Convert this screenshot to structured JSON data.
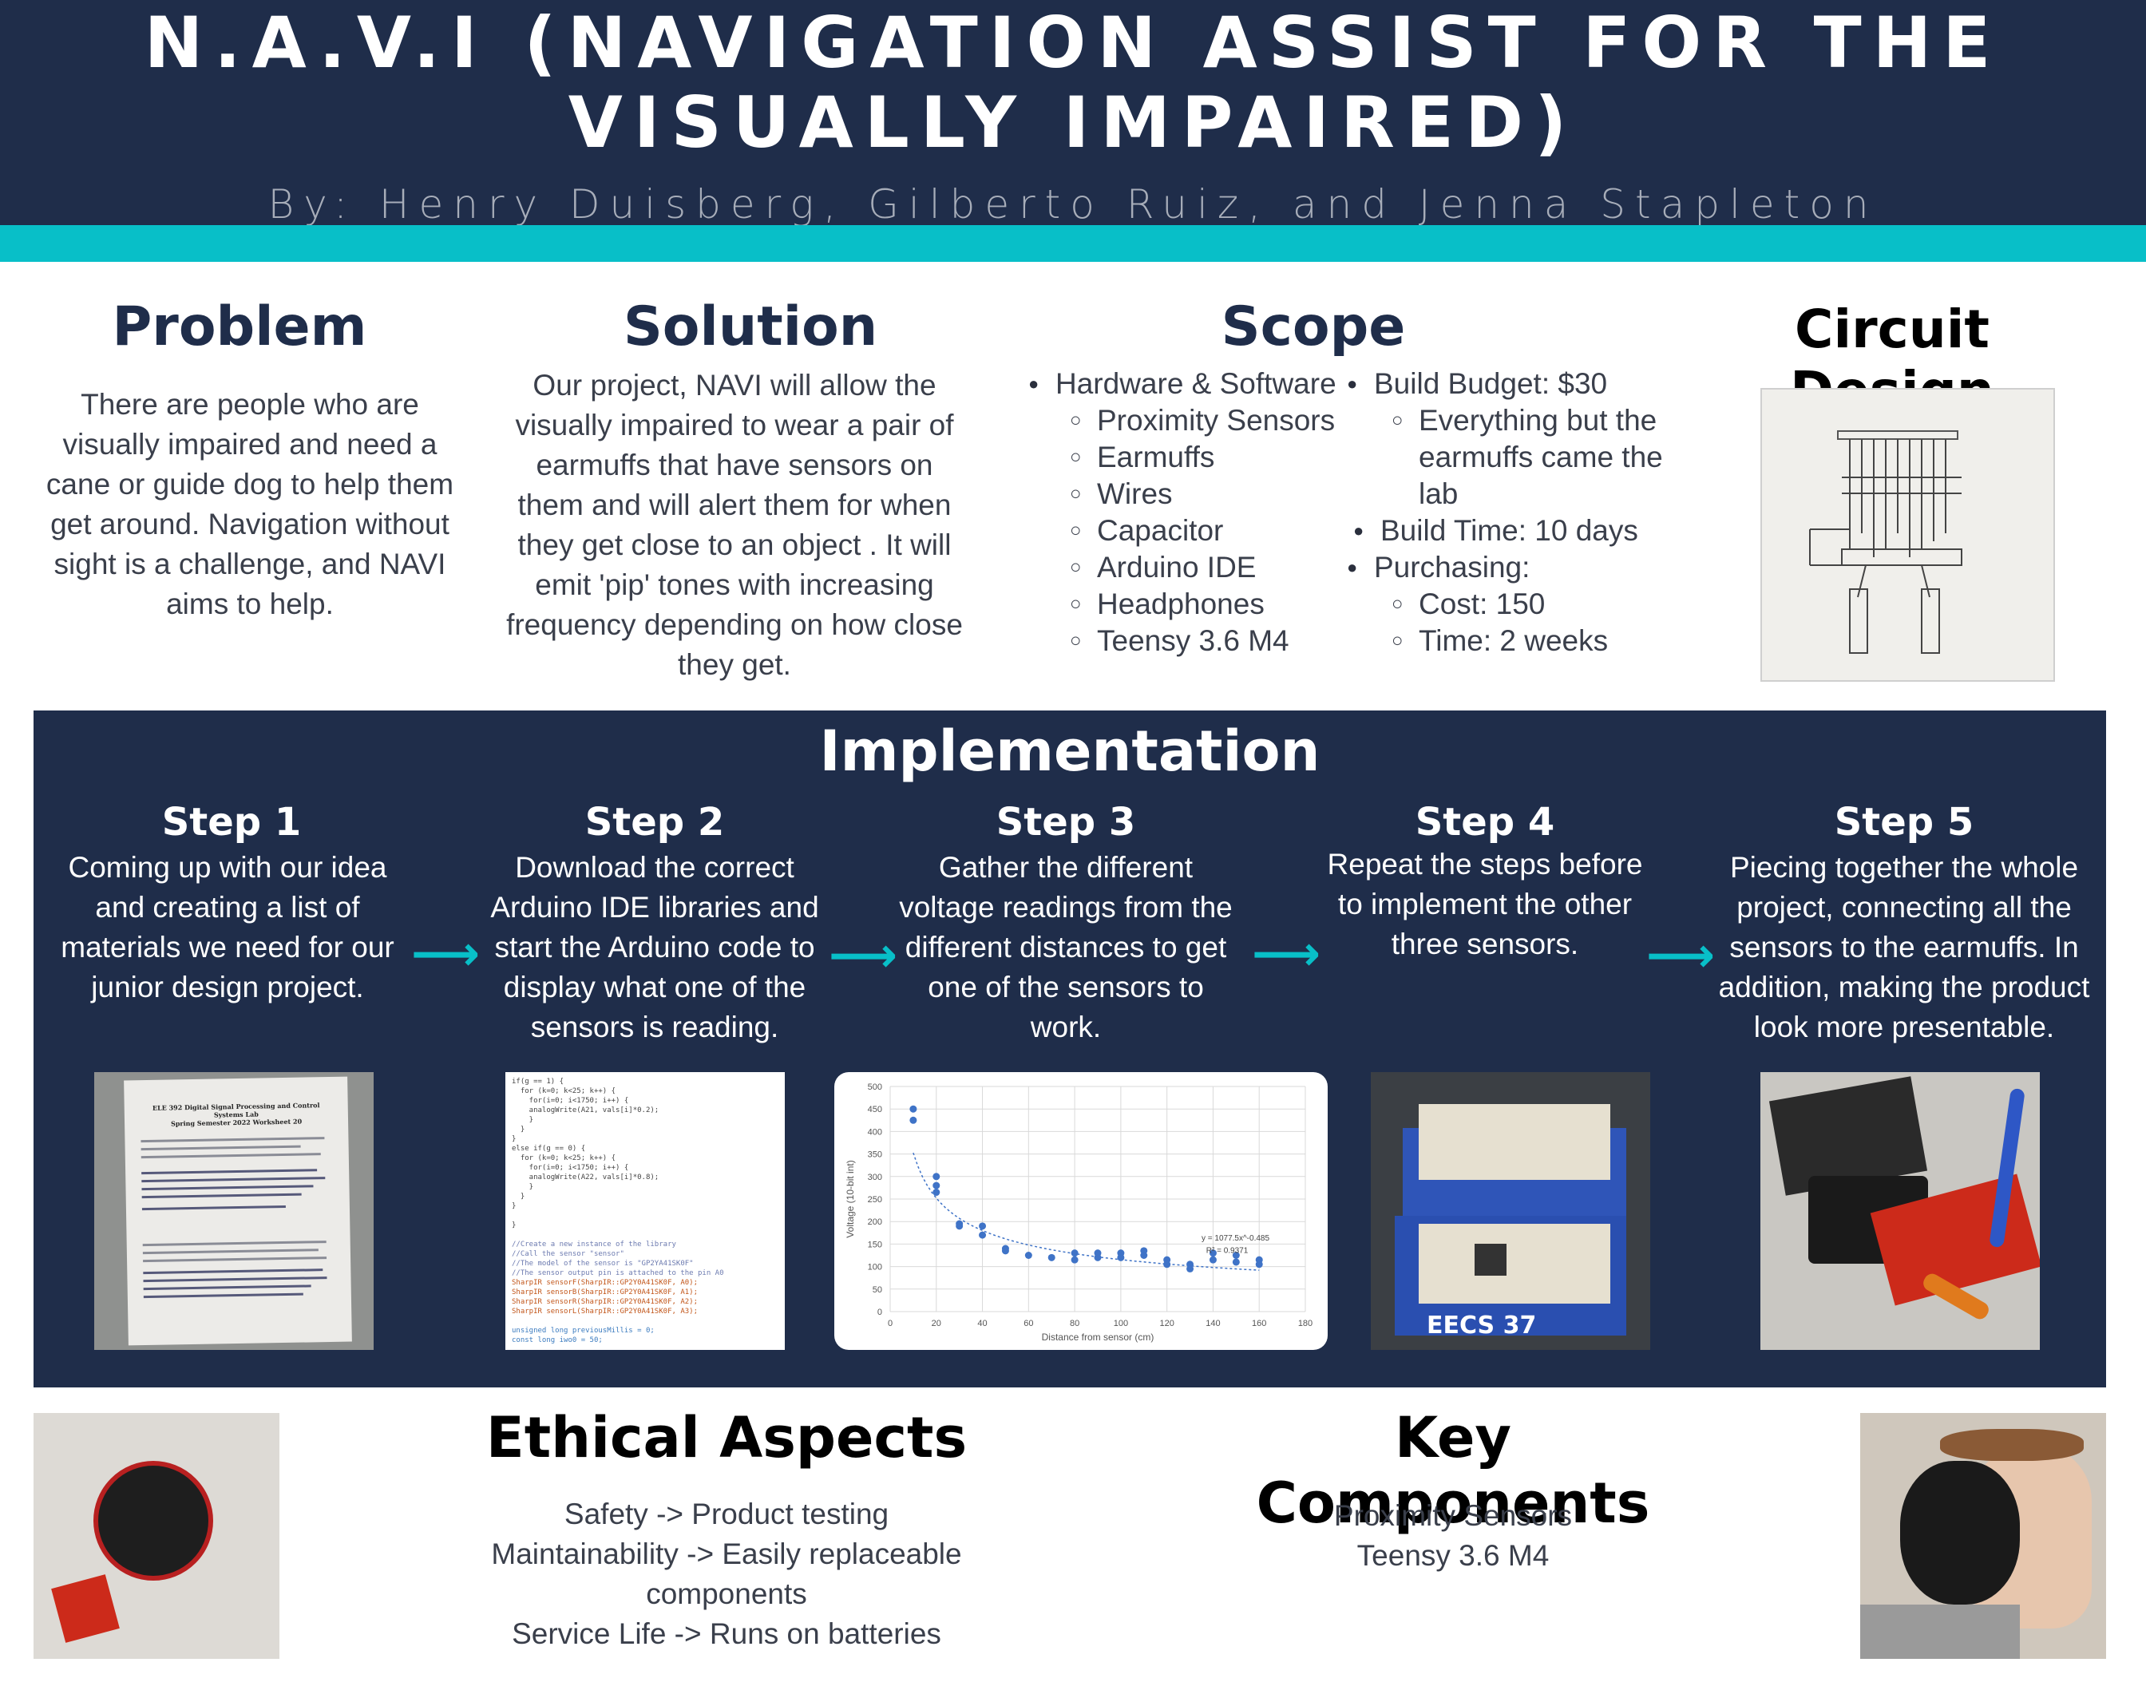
{
  "header": {
    "title_line1": "N.A.V.I (NAVIGATION ASSIST FOR THE",
    "title_line2": "VISUALLY IMPAIRED)",
    "authors": "By: Henry Duisberg, Gilberto Ruiz, and Jenna Stapleton"
  },
  "problem": {
    "title": "Problem",
    "text": "There are people who are visually impaired and need a cane or guide dog to help them get around. Navigation without sight is a challenge, and NAVI aims to help."
  },
  "solution": {
    "title": "Solution",
    "text": "Our project, NAVI will allow the visually impaired to wear a pair of earmuffs that have sensors on them and will alert them for when they get close to an object . It will emit 'pip' tones with increasing frequency depending on how close they get."
  },
  "scope": {
    "title": "Scope",
    "col1": {
      "head": "Hardware & Software",
      "items": [
        "Proximity Sensors",
        "Earmuffs",
        "Wires",
        "Capacitor",
        "Arduino IDE",
        "Headphones",
        "Teensy 3.6 M4"
      ]
    },
    "budget": "Build Budget: $30",
    "budget_sub1": "Everything but the",
    "budget_sub2": "earmuffs came the",
    "budget_sub3": "lab",
    "build_time": "Build Time: 10 days",
    "purchasing": "Purchasing:",
    "cost": "Cost: 150",
    "time": "Time: 2 weeks"
  },
  "circuit": {
    "title": "Circuit Design"
  },
  "implementation": {
    "title": "Implementation",
    "steps": [
      {
        "title": "Step 1",
        "text": "Coming up with our idea and creating a list of materials we need for our junior design project."
      },
      {
        "title": "Step 2",
        "text": "Download the correct Arduino IDE libraries and start the Arduino code to display what one of the sensors is reading."
      },
      {
        "title": "Step 3",
        "text": "Gather the different voltage readings from the different distances to get one of the sensors to work."
      },
      {
        "title": "Step 4",
        "text": "Repeat the steps before to implement the other three sensors."
      },
      {
        "title": "Step 5",
        "text": "Piecing together the whole project, connecting all the sensors to the earmuffs. In addition, making the product look more presentable."
      }
    ],
    "arrow": "⟶"
  },
  "worksheet": {
    "l1": "ELE 392 Digital Signal Processing and Control Systems Lab",
    "l2": "Spring Semester 2022 Worksheet 20"
  },
  "code_lines": [
    "if(g == 1) {",
    "  for (k=0; k<25; k++) {",
    "    for(i=0; i<1750; i++) {",
    "    analogWrite(A21, vals[i]*0.2);",
    "    }",
    "  }",
    "}",
    "else if(g == 0) {",
    "  for (k=0; k<25; k++) {",
    "    for(i=0; i<1750; i++) {",
    "    analogWrite(A22, vals[i]*0.8);",
    "    }",
    "  }",
    "}",
    "",
    "}",
    "",
    "//Create a new instance of the library",
    "//Call the sensor \"sensor\"",
    "//The model of the sensor is \"GP2YA41SK0F\"",
    "//The sensor output pin is attached to the pin A0",
    "SharpIR sensorF(SharpIR::GP2Y0A41SK0F, A0);",
    "SharpIR sensorB(SharpIR::GP2Y0A41SK0F, A1);",
    "SharpIR sensorR(SharpIR::GP2Y0A41SK0F, A2);",
    "SharpIR sensorL(SharpIR::GP2Y0A41SK0F, A3);",
    "",
    "unsigned long previousMillis = 0;",
    "const long iwo0 = 50;"
  ],
  "chart_data": {
    "type": "scatter",
    "xlabel": "Distance from sensor (cm)",
    "ylabel": "Voltage (10-bit int)",
    "xlim": [
      0,
      180
    ],
    "ylim": [
      0,
      500
    ],
    "xticks": [
      0,
      20,
      40,
      60,
      80,
      100,
      120,
      140,
      160,
      180
    ],
    "yticks": [
      0,
      50,
      100,
      150,
      200,
      250,
      300,
      350,
      400,
      450,
      500
    ],
    "equation": "y = 1077.5x^-0.485",
    "r2": "R² = 0.9371",
    "x": [
      10,
      10,
      20,
      20,
      20,
      30,
      30,
      40,
      40,
      50,
      50,
      60,
      70,
      80,
      80,
      90,
      90,
      100,
      100,
      110,
      110,
      120,
      120,
      130,
      130,
      140,
      140,
      150,
      150,
      160,
      160
    ],
    "y": [
      450,
      425,
      300,
      280,
      265,
      195,
      190,
      190,
      170,
      140,
      135,
      125,
      120,
      130,
      115,
      130,
      120,
      130,
      120,
      135,
      125,
      115,
      105,
      105,
      95,
      130,
      115,
      125,
      110,
      115,
      105
    ],
    "trend": {
      "a": 1077.5,
      "b": -0.485
    },
    "colors": {
      "points": "#3f73c7",
      "grid": "#d9d9d9"
    }
  },
  "board_label": "EECS 37",
  "ethics": {
    "title": "Ethical Aspects",
    "lines": [
      "Safety -> Product testing",
      "Maintainability -> Easily replaceable components",
      "Service Life -> Runs on batteries"
    ]
  },
  "components": {
    "title": "Key Components",
    "lines": [
      "Proximity Sensors",
      "Teensy 3.6 M4"
    ]
  },
  "colors": {
    "navy": "#1f2d4a",
    "teal": "#08bfc8"
  }
}
